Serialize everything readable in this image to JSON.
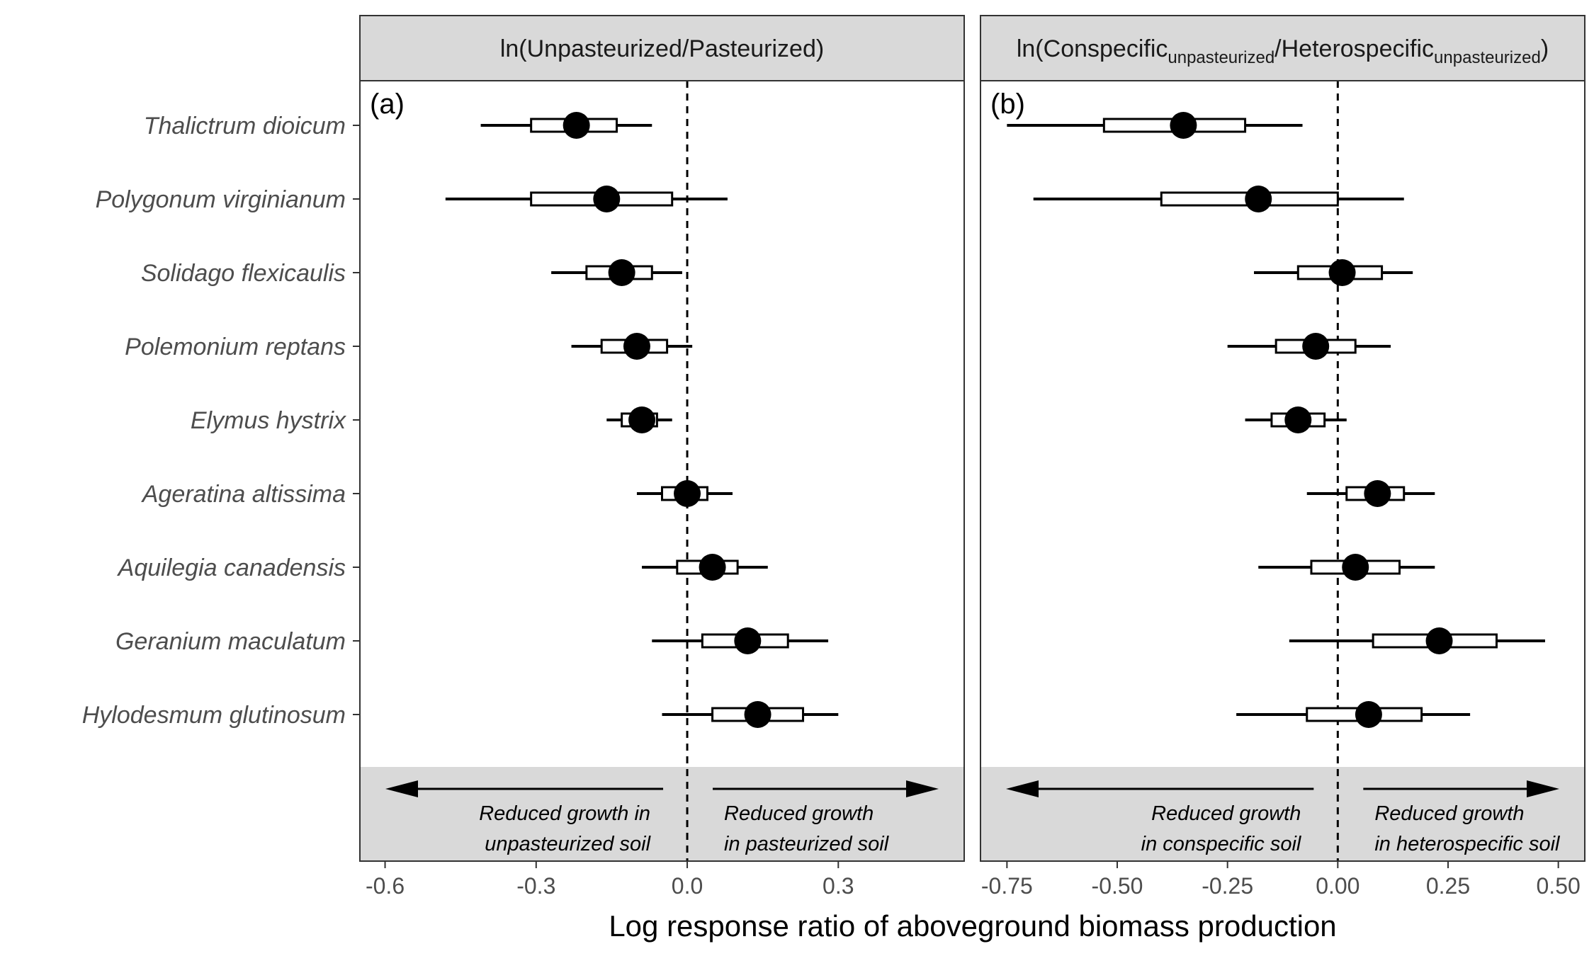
{
  "chart_data": [
    {
      "type": "forest",
      "panel_label": "(a)",
      "strip": {
        "prefix": "ln(",
        "numerator": "Unpasteurized",
        "numerator_sub": "",
        "divider": "/",
        "denominator": "Pasteurized",
        "denominator_sub": "",
        "suffix": ")"
      },
      "xlim": [
        -0.65,
        0.55
      ],
      "xticks": [
        -0.6,
        -0.3,
        0.0,
        0.3
      ],
      "xtick_labels": [
        "-0.6",
        "-0.3",
        "0.0",
        "0.3"
      ],
      "reference_line": 0,
      "annotations": {
        "left": [
          "Reduced growth in",
          "unpasteurized soil"
        ],
        "right": [
          "Reduced growth",
          "in pasteurized soil"
        ]
      },
      "species": [
        {
          "name": "Thalictrum dioicum",
          "mean": -0.22,
          "box": [
            -0.31,
            -0.14
          ],
          "whisker": [
            -0.41,
            -0.07
          ]
        },
        {
          "name": "Polygonum virginianum",
          "mean": -0.16,
          "box": [
            -0.31,
            -0.03
          ],
          "whisker": [
            -0.48,
            0.08
          ]
        },
        {
          "name": "Solidago flexicaulis",
          "mean": -0.13,
          "box": [
            -0.2,
            -0.07
          ],
          "whisker": [
            -0.27,
            -0.01
          ]
        },
        {
          "name": "Polemonium reptans",
          "mean": -0.1,
          "box": [
            -0.17,
            -0.04
          ],
          "whisker": [
            -0.23,
            0.01
          ]
        },
        {
          "name": "Elymus hystrix",
          "mean": -0.09,
          "box": [
            -0.13,
            -0.06
          ],
          "whisker": [
            -0.16,
            -0.03
          ]
        },
        {
          "name": "Ageratina altissima",
          "mean": 0.0,
          "box": [
            -0.05,
            0.04
          ],
          "whisker": [
            -0.1,
            0.09
          ]
        },
        {
          "name": "Aquilegia canadensis",
          "mean": 0.05,
          "box": [
            -0.02,
            0.1
          ],
          "whisker": [
            -0.09,
            0.16
          ]
        },
        {
          "name": "Geranium maculatum",
          "mean": 0.12,
          "box": [
            0.03,
            0.2
          ],
          "whisker": [
            -0.07,
            0.28
          ]
        },
        {
          "name": "Hylodesmum glutinosum",
          "mean": 0.14,
          "box": [
            0.05,
            0.23
          ],
          "whisker": [
            -0.05,
            0.3
          ]
        }
      ]
    },
    {
      "type": "forest",
      "panel_label": "(b)",
      "strip": {
        "prefix": "ln(",
        "numerator": "Conspecific",
        "numerator_sub": "unpasteurized",
        "divider": "/",
        "denominator": "Heterospecific",
        "denominator_sub": "unpasteurized",
        "suffix": ")"
      },
      "xlim": [
        -0.81,
        0.56
      ],
      "xticks": [
        -0.75,
        -0.5,
        -0.25,
        0.0,
        0.25,
        0.5
      ],
      "xtick_labels": [
        "-0.75",
        "-0.50",
        "-0.25",
        "0.00",
        "0.25",
        "0.50"
      ],
      "reference_line": 0,
      "annotations": {
        "left": [
          "Reduced growth",
          "in conspecific soil"
        ],
        "right": [
          "Reduced growth",
          "in heterospecific soil"
        ]
      },
      "species": [
        {
          "name": "Thalictrum dioicum",
          "mean": -0.35,
          "box": [
            -0.53,
            -0.21
          ],
          "whisker": [
            -0.75,
            -0.08
          ]
        },
        {
          "name": "Polygonum virginianum",
          "mean": -0.18,
          "box": [
            -0.4,
            0.0
          ],
          "whisker": [
            -0.69,
            0.15
          ]
        },
        {
          "name": "Solidago flexicaulis",
          "mean": 0.01,
          "box": [
            -0.09,
            0.1
          ],
          "whisker": [
            -0.19,
            0.17
          ]
        },
        {
          "name": "Polemonium reptans",
          "mean": -0.05,
          "box": [
            -0.14,
            0.04
          ],
          "whisker": [
            -0.25,
            0.12
          ]
        },
        {
          "name": "Elymus hystrix",
          "mean": -0.09,
          "box": [
            -0.15,
            -0.03
          ],
          "whisker": [
            -0.21,
            0.02
          ]
        },
        {
          "name": "Ageratina altissima",
          "mean": 0.09,
          "box": [
            0.02,
            0.15
          ],
          "whisker": [
            -0.07,
            0.22
          ]
        },
        {
          "name": "Aquilegia canadensis",
          "mean": 0.04,
          "box": [
            -0.06,
            0.14
          ],
          "whisker": [
            -0.18,
            0.22
          ]
        },
        {
          "name": "Geranium maculatum",
          "mean": 0.23,
          "box": [
            0.08,
            0.36
          ],
          "whisker": [
            -0.11,
            0.47
          ]
        },
        {
          "name": "Hylodesmum glutinosum",
          "mean": 0.07,
          "box": [
            -0.07,
            0.19
          ],
          "whisker": [
            -0.23,
            0.3
          ]
        }
      ]
    }
  ],
  "xlabel": "Log response ratio of aboveground biomass production"
}
